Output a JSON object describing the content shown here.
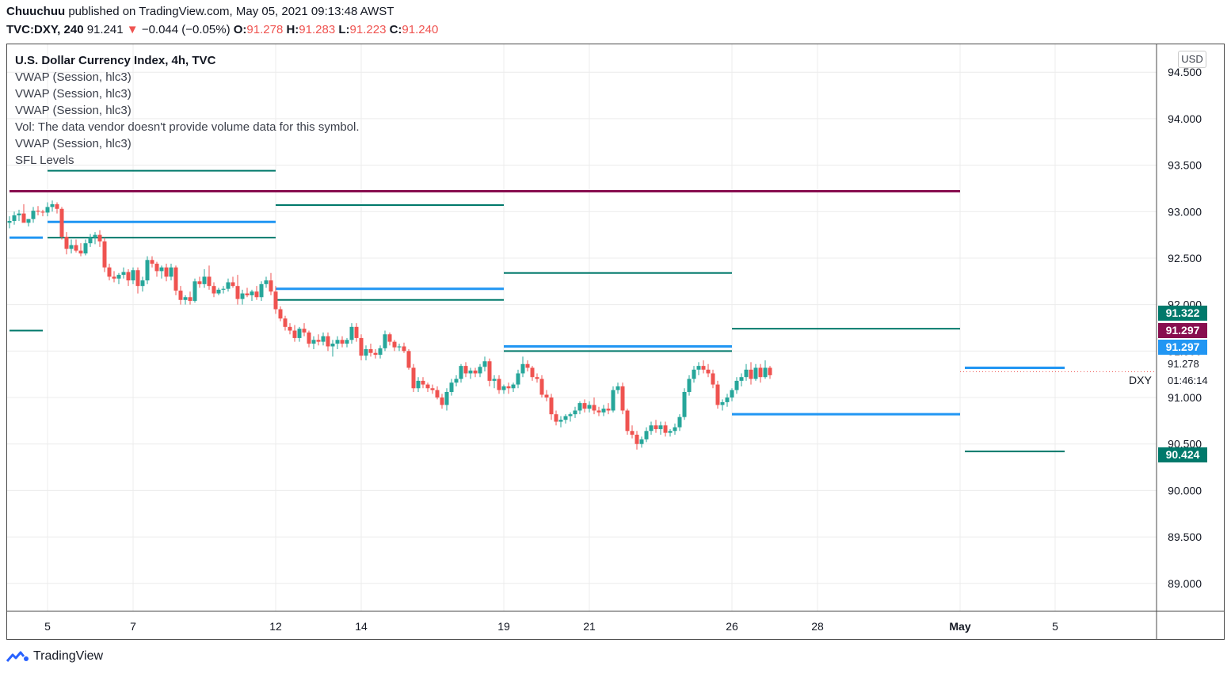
{
  "header": {
    "author": "Chuuchuu",
    "published_text": "published on TradingView.com, May 05, 2021 09:13:48 AWST",
    "symbol": "TVC:DXY, 240",
    "last": "91.241",
    "change_arrow": "▼",
    "change": "−0.044 (−0.05%)",
    "o_label": "O:",
    "o_value": "91.278",
    "h_label": "H:",
    "h_value": "91.283",
    "l_label": "L:",
    "l_value": "91.223",
    "c_label": "C:",
    "c_value": "91.240"
  },
  "legend": {
    "title": "U.S. Dollar Currency Index, 4h, TVC",
    "items": [
      "VWAP (Session, hlc3)",
      "VWAP (Session, hlc3)",
      "VWAP (Session, hlc3)",
      "Vol: The data vendor doesn't provide volume data for this symbol.",
      "VWAP (Session, hlc3)",
      "SFL Levels"
    ]
  },
  "currency": "USD",
  "price_tags": {
    "tag1": {
      "value": "91.322",
      "color": "#00796b"
    },
    "tag2": {
      "value": "91.297",
      "color": "#880e4f"
    },
    "tag3": {
      "value": "91.297",
      "color": "#2196f3"
    },
    "tag4": {
      "value": "90.424",
      "color": "#00796b"
    },
    "last_price": "91.278",
    "countdown": "01:46:14",
    "symbol_short": "DXY"
  },
  "footer": {
    "brand": "TradingView"
  },
  "colors": {
    "up": "#26a69a",
    "down": "#ef5350",
    "vwap": "#2196f3",
    "sfl": "#00796b",
    "resistance": "#880e4f",
    "grid": "#ececec"
  },
  "chart_data": {
    "type": "candlestick",
    "title": "U.S. Dollar Currency Index, 4h, TVC",
    "ylim": [
      88.7,
      94.8
    ],
    "y_ticks": [
      89.0,
      89.5,
      90.0,
      90.5,
      91.0,
      91.5,
      92.0,
      92.5,
      93.0,
      93.5,
      94.0,
      94.5
    ],
    "y_tick_labels": [
      "89.000",
      "89.500",
      "90.000",
      "90.500",
      "91.000",
      "91.500",
      "92.000",
      "92.500",
      "93.000",
      "93.500",
      "94.000",
      "94.500"
    ],
    "x_ticks": [
      {
        "label": "5",
        "i": 8
      },
      {
        "label": "7",
        "i": 26
      },
      {
        "label": "12",
        "i": 56
      },
      {
        "label": "14",
        "i": 74
      },
      {
        "label": "19",
        "i": 104
      },
      {
        "label": "21",
        "i": 122
      },
      {
        "label": "26",
        "i": 152
      },
      {
        "label": "28",
        "i": 170
      },
      {
        "label": "May",
        "i": 200
      },
      {
        "label": "5",
        "i": 220
      }
    ],
    "candles": [
      [
        92.88,
        92.95,
        92.82,
        92.9
      ],
      [
        92.9,
        93.0,
        92.86,
        92.96
      ],
      [
        92.96,
        93.02,
        92.9,
        92.98
      ],
      [
        92.98,
        93.08,
        92.94,
        92.88
      ],
      [
        92.88,
        92.92,
        92.84,
        92.92
      ],
      [
        92.92,
        93.05,
        92.88,
        93.01
      ],
      [
        93.01,
        93.06,
        92.96,
        93.0
      ],
      [
        93.0,
        93.02,
        92.95,
        92.99
      ],
      [
        92.99,
        93.1,
        92.95,
        93.05
      ],
      [
        93.05,
        93.12,
        93.0,
        93.08
      ],
      [
        93.08,
        93.1,
        92.98,
        93.03
      ],
      [
        93.03,
        93.05,
        92.7,
        92.73
      ],
      [
        92.73,
        92.78,
        92.54,
        92.6
      ],
      [
        92.6,
        92.7,
        92.55,
        92.64
      ],
      [
        92.64,
        92.7,
        92.56,
        92.58
      ],
      [
        92.58,
        92.66,
        92.52,
        92.55
      ],
      [
        92.55,
        92.7,
        92.53,
        92.66
      ],
      [
        92.66,
        92.76,
        92.62,
        92.72
      ],
      [
        92.72,
        92.78,
        92.65,
        92.75
      ],
      [
        92.75,
        92.8,
        92.62,
        92.68
      ],
      [
        92.68,
        92.72,
        92.35,
        92.4
      ],
      [
        92.4,
        92.44,
        92.26,
        92.3
      ],
      [
        92.3,
        92.36,
        92.24,
        92.28
      ],
      [
        92.28,
        92.34,
        92.22,
        92.32
      ],
      [
        92.32,
        92.4,
        92.28,
        92.35
      ],
      [
        92.35,
        92.38,
        92.2,
        92.26
      ],
      [
        92.26,
        92.4,
        92.22,
        92.37
      ],
      [
        92.37,
        92.4,
        92.12,
        92.2
      ],
      [
        92.2,
        92.3,
        92.14,
        92.26
      ],
      [
        92.26,
        92.52,
        92.22,
        92.48
      ],
      [
        92.48,
        92.52,
        92.4,
        92.44
      ],
      [
        92.44,
        92.46,
        92.3,
        92.36
      ],
      [
        92.36,
        92.42,
        92.28,
        92.4
      ],
      [
        92.4,
        92.44,
        92.25,
        92.3
      ],
      [
        92.3,
        92.44,
        92.26,
        92.4
      ],
      [
        92.4,
        92.42,
        92.1,
        92.15
      ],
      [
        92.15,
        92.2,
        92.0,
        92.05
      ],
      [
        92.05,
        92.1,
        92.0,
        92.08
      ],
      [
        92.08,
        92.14,
        92.0,
        92.04
      ],
      [
        92.04,
        92.28,
        92.02,
        92.25
      ],
      [
        92.25,
        92.3,
        92.18,
        92.22
      ],
      [
        92.22,
        92.38,
        92.18,
        92.3
      ],
      [
        92.3,
        92.42,
        92.16,
        92.2
      ],
      [
        92.2,
        92.24,
        92.08,
        92.12
      ],
      [
        92.12,
        92.18,
        92.1,
        92.16
      ],
      [
        92.16,
        92.2,
        92.12,
        92.17
      ],
      [
        92.17,
        92.28,
        92.14,
        92.24
      ],
      [
        92.24,
        92.3,
        92.18,
        92.2
      ],
      [
        92.2,
        92.32,
        92.0,
        92.06
      ],
      [
        92.06,
        92.16,
        92.0,
        92.12
      ],
      [
        92.12,
        92.18,
        92.08,
        92.1
      ],
      [
        92.1,
        92.16,
        92.04,
        92.14
      ],
      [
        92.14,
        92.2,
        92.05,
        92.08
      ],
      [
        92.08,
        92.25,
        92.04,
        92.22
      ],
      [
        92.22,
        92.3,
        92.18,
        92.26
      ],
      [
        92.26,
        92.34,
        92.1,
        92.14
      ],
      [
        92.14,
        92.2,
        91.9,
        91.95
      ],
      [
        91.95,
        91.98,
        91.82,
        91.85
      ],
      [
        91.85,
        91.88,
        91.72,
        91.76
      ],
      [
        91.76,
        91.8,
        91.68,
        91.72
      ],
      [
        91.72,
        91.78,
        91.6,
        91.64
      ],
      [
        91.64,
        91.76,
        91.6,
        91.74
      ],
      [
        91.74,
        91.8,
        91.66,
        91.7
      ],
      [
        91.7,
        91.72,
        91.54,
        91.58
      ],
      [
        91.58,
        91.66,
        91.52,
        91.62
      ],
      [
        91.62,
        91.68,
        91.56,
        91.6
      ],
      [
        91.6,
        91.7,
        91.56,
        91.66
      ],
      [
        91.66,
        91.7,
        91.5,
        91.55
      ],
      [
        91.55,
        91.62,
        91.44,
        91.58
      ],
      [
        91.58,
        91.66,
        91.52,
        91.62
      ],
      [
        91.62,
        91.66,
        91.54,
        91.58
      ],
      [
        91.58,
        91.64,
        91.54,
        91.62
      ],
      [
        91.62,
        91.8,
        91.58,
        91.76
      ],
      [
        91.76,
        91.8,
        91.6,
        91.64
      ],
      [
        91.64,
        91.68,
        91.4,
        91.45
      ],
      [
        91.45,
        91.56,
        91.4,
        91.52
      ],
      [
        91.52,
        91.58,
        91.44,
        91.48
      ],
      [
        91.48,
        91.52,
        91.42,
        91.46
      ],
      [
        91.46,
        91.56,
        91.42,
        91.53
      ],
      [
        91.53,
        91.72,
        91.5,
        91.68
      ],
      [
        91.68,
        91.7,
        91.56,
        91.6
      ],
      [
        91.6,
        91.62,
        91.5,
        91.54
      ],
      [
        91.54,
        91.58,
        91.5,
        91.55
      ],
      [
        91.55,
        91.59,
        91.48,
        91.5
      ],
      [
        91.5,
        91.52,
        91.3,
        91.32
      ],
      [
        91.32,
        91.36,
        91.06,
        91.1
      ],
      [
        91.1,
        91.22,
        91.06,
        91.18
      ],
      [
        91.18,
        91.22,
        91.1,
        91.14
      ],
      [
        91.14,
        91.16,
        91.06,
        91.1
      ],
      [
        91.1,
        91.14,
        91.04,
        91.08
      ],
      [
        91.08,
        91.12,
        90.98,
        91.0
      ],
      [
        91.0,
        91.04,
        90.88,
        90.92
      ],
      [
        90.92,
        91.1,
        90.86,
        91.06
      ],
      [
        91.06,
        91.2,
        91.02,
        91.16
      ],
      [
        91.16,
        91.24,
        91.12,
        91.2
      ],
      [
        91.2,
        91.36,
        91.16,
        91.34
      ],
      [
        91.34,
        91.38,
        91.22,
        91.26
      ],
      [
        91.26,
        91.32,
        91.2,
        91.29
      ],
      [
        91.29,
        91.32,
        91.22,
        91.26
      ],
      [
        91.26,
        91.36,
        91.22,
        91.33
      ],
      [
        91.33,
        91.44,
        91.28,
        91.39
      ],
      [
        91.39,
        91.42,
        91.12,
        91.18
      ],
      [
        91.18,
        91.24,
        91.1,
        91.2
      ],
      [
        91.2,
        91.24,
        91.04,
        91.08
      ],
      [
        91.08,
        91.14,
        91.04,
        91.12
      ],
      [
        91.12,
        91.16,
        91.04,
        91.1
      ],
      [
        91.1,
        91.16,
        91.06,
        91.14
      ],
      [
        91.14,
        91.3,
        91.1,
        91.26
      ],
      [
        91.26,
        91.44,
        91.22,
        91.36
      ],
      [
        91.36,
        91.4,
        91.28,
        91.32
      ],
      [
        91.32,
        91.34,
        91.18,
        91.22
      ],
      [
        91.22,
        91.26,
        91.16,
        91.2
      ],
      [
        91.2,
        91.24,
        91.0,
        91.03
      ],
      [
        91.03,
        91.08,
        90.96,
        91.0
      ],
      [
        91.0,
        91.04,
        90.76,
        90.82
      ],
      [
        90.82,
        90.86,
        90.7,
        90.74
      ],
      [
        90.74,
        90.8,
        90.68,
        90.76
      ],
      [
        90.76,
        90.82,
        90.72,
        90.8
      ],
      [
        90.8,
        90.84,
        90.74,
        90.82
      ],
      [
        90.82,
        90.9,
        90.78,
        90.86
      ],
      [
        90.86,
        90.96,
        90.82,
        90.94
      ],
      [
        90.94,
        90.98,
        90.84,
        90.88
      ],
      [
        90.88,
        90.96,
        90.84,
        90.92
      ],
      [
        90.92,
        91.0,
        90.82,
        90.86
      ],
      [
        90.86,
        90.9,
        90.8,
        90.84
      ],
      [
        90.84,
        90.92,
        90.8,
        90.88
      ],
      [
        90.88,
        90.94,
        90.82,
        90.86
      ],
      [
        90.86,
        91.12,
        90.84,
        91.08
      ],
      [
        91.08,
        91.16,
        91.04,
        91.12
      ],
      [
        91.12,
        91.16,
        90.82,
        90.86
      ],
      [
        90.86,
        90.88,
        90.6,
        90.64
      ],
      [
        90.64,
        90.7,
        90.56,
        90.6
      ],
      [
        90.6,
        90.64,
        90.44,
        90.5
      ],
      [
        90.5,
        90.58,
        90.46,
        90.55
      ],
      [
        90.55,
        90.68,
        90.52,
        90.64
      ],
      [
        90.64,
        90.74,
        90.6,
        90.7
      ],
      [
        90.7,
        90.76,
        90.62,
        90.66
      ],
      [
        90.66,
        90.74,
        90.6,
        90.7
      ],
      [
        90.7,
        90.74,
        90.58,
        90.62
      ],
      [
        90.62,
        90.66,
        90.58,
        90.64
      ],
      [
        90.64,
        90.72,
        90.6,
        90.68
      ],
      [
        90.68,
        90.82,
        90.64,
        90.79
      ],
      [
        90.79,
        91.1,
        90.76,
        91.06
      ],
      [
        91.06,
        91.24,
        91.02,
        91.2
      ],
      [
        91.2,
        91.34,
        91.16,
        91.3
      ],
      [
        91.3,
        91.38,
        91.24,
        91.34
      ],
      [
        91.34,
        91.4,
        91.26,
        91.3
      ],
      [
        91.3,
        91.36,
        91.22,
        91.26
      ],
      [
        91.26,
        91.3,
        91.1,
        91.14
      ],
      [
        91.14,
        91.18,
        90.88,
        90.92
      ],
      [
        90.92,
        90.98,
        90.86,
        90.95
      ],
      [
        90.95,
        91.04,
        90.9,
        91.0
      ],
      [
        91.0,
        91.1,
        90.96,
        91.08
      ],
      [
        91.08,
        91.22,
        91.04,
        91.18
      ],
      [
        91.18,
        91.26,
        91.12,
        91.22
      ],
      [
        91.22,
        91.36,
        91.18,
        91.3
      ],
      [
        91.3,
        91.38,
        91.14,
        91.2
      ],
      [
        91.2,
        91.36,
        91.18,
        91.32
      ],
      [
        91.32,
        91.36,
        91.16,
        91.22
      ],
      [
        91.22,
        91.4,
        91.2,
        91.32
      ],
      [
        91.32,
        91.34,
        91.2,
        91.24
      ]
    ],
    "sfl_levels": [
      {
        "price": 93.44,
        "from": 8,
        "to": 56,
        "color": "#00796b"
      },
      {
        "price": 93.07,
        "from": 56,
        "to": 104,
        "color": "#00796b"
      },
      {
        "price": 92.72,
        "from": 8,
        "to": 56,
        "color": "#00796b"
      },
      {
        "price": 92.34,
        "from": 104,
        "to": 152,
        "color": "#00796b"
      },
      {
        "price": 92.05,
        "from": 56,
        "to": 104,
        "color": "#00796b"
      },
      {
        "price": 91.72,
        "from": 0,
        "to": 7,
        "color": "#00796b"
      },
      {
        "price": 91.74,
        "from": 152,
        "to": 200,
        "color": "#00796b"
      },
      {
        "price": 91.5,
        "from": 104,
        "to": 152,
        "color": "#00796b"
      },
      {
        "price": 90.42,
        "from": 201,
        "to": 222,
        "color": "#00796b"
      },
      {
        "price": 93.22,
        "from": 0,
        "to": 200,
        "color": "#880e4f"
      }
    ],
    "vwap_levels": [
      {
        "price": 92.89,
        "from": 8,
        "to": 56
      },
      {
        "price": 92.72,
        "from": 0,
        "to": 7
      },
      {
        "price": 92.17,
        "from": 56,
        "to": 104
      },
      {
        "price": 91.55,
        "from": 104,
        "to": 152
      },
      {
        "price": 90.82,
        "from": 152,
        "to": 200
      },
      {
        "price": 91.32,
        "from": 201,
        "to": 222
      }
    ]
  }
}
